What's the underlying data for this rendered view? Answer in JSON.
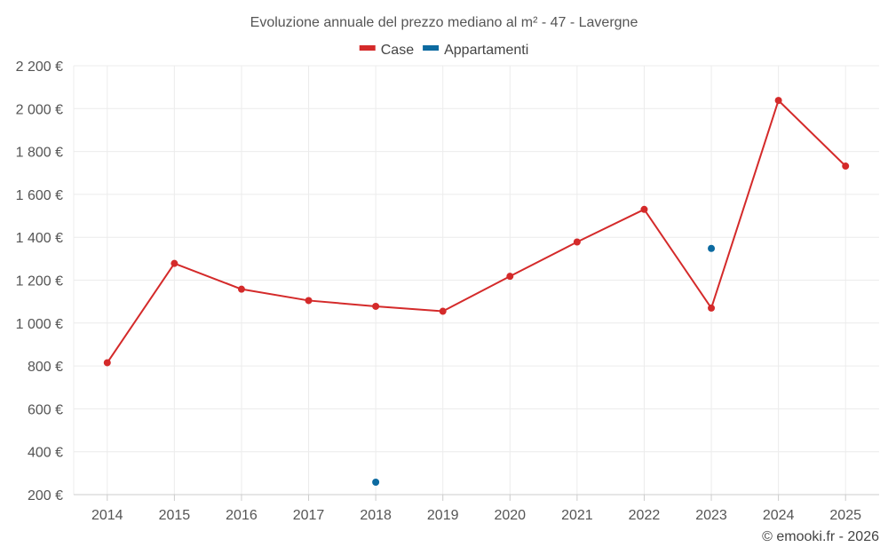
{
  "chart_data": {
    "type": "line",
    "title": "Evoluzione annuale del prezzo mediano al m² - 47 - Lavergne",
    "x": [
      "2014",
      "2015",
      "2016",
      "2017",
      "2018",
      "2019",
      "2020",
      "2021",
      "2022",
      "2023",
      "2024",
      "2025"
    ],
    "series": [
      {
        "name": "Case",
        "color": "#d42a2a",
        "values": [
          815,
          1278,
          1158,
          1105,
          1078,
          1055,
          1218,
          1378,
          1530,
          1070,
          2038,
          1732
        ]
      },
      {
        "name": "Appartamenti",
        "color": "#0c6aa0",
        "values": [
          null,
          null,
          null,
          null,
          258,
          null,
          null,
          null,
          null,
          1348,
          null,
          null
        ]
      }
    ],
    "ylim": [
      200,
      2200
    ],
    "yticks": [
      200,
      400,
      600,
      800,
      1000,
      1200,
      1400,
      1600,
      1800,
      2000,
      2200
    ],
    "ytick_labels": [
      "200 €",
      "400 €",
      "600 €",
      "800 €",
      "1 000 €",
      "1 200 €",
      "1 400 €",
      "1 600 €",
      "1 800 €",
      "2 000 €",
      "2 200 €"
    ],
    "legend_position": "top-center",
    "grid": true
  },
  "footer": {
    "copyright": "© emooki.fr - 2026"
  }
}
